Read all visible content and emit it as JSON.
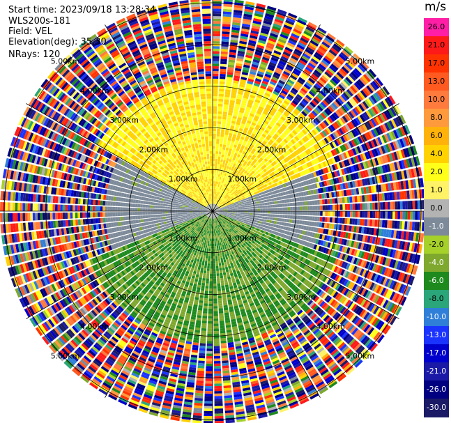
{
  "header": {
    "start_time": "Start time: 2023/09/18 13:28:34",
    "instrument": "WLS200s-181",
    "field": "Field: VEL",
    "elevation": "Elevation(deg): 35.30",
    "nrays": "NRays: 120"
  },
  "colorbar": {
    "unit": "m/s",
    "ticks": [
      "26.0",
      "21.0",
      "17.0",
      "13.0",
      "10.0",
      "8.0",
      "6.0",
      "4.0",
      "2.0",
      "1.0",
      "0.0",
      "-1.0",
      "-2.0",
      "-4.0",
      "-6.0",
      "-8.0",
      "-10.0",
      "-13.0",
      "-17.0",
      "-21.0",
      "-26.0",
      "-30.0"
    ],
    "colors": [
      "#ff1fa6",
      "#ff1a1a",
      "#ff3300",
      "#ff5a1f",
      "#ff7a3d",
      "#ff9a3c",
      "#ffb20a",
      "#ffd200",
      "#ffff1a",
      "#fff266",
      "#b3b3b3",
      "#7d8a99",
      "#a6d12a",
      "#7fa82e",
      "#1e8a1e",
      "#2aa67a",
      "#2f7fd9",
      "#1a33ff",
      "#0000cc",
      "#1a1aa6",
      "#000080",
      "#1a1a66"
    ]
  },
  "chart_data": {
    "type": "heatmap",
    "projection": "polar PPI",
    "field": "VEL",
    "nrays": 120,
    "range_rings_km": [
      1.0,
      2.0,
      3.0,
      4.0,
      5.0
    ],
    "ring_labels": [
      "1.00km",
      "2.00km",
      "3.00km",
      "4.00km",
      "5.00km"
    ],
    "max_range_km": 5.1,
    "spokes_deg": [
      0,
      30,
      60,
      90,
      120,
      150,
      180,
      210,
      240,
      270,
      300,
      330
    ],
    "regions": [
      {
        "sector": "north",
        "near_km": 0.2,
        "far_km": 3.2,
        "velocity_ms": [
          2.0,
          6.0
        ]
      },
      {
        "sector": "east-northeast",
        "near_km": 0.2,
        "far_km": 2.6,
        "velocity_ms": [
          -1.0,
          0.0
        ]
      },
      {
        "sector": "west",
        "near_km": 0.2,
        "far_km": 2.6,
        "velocity_ms": [
          -1.0,
          0.0
        ]
      },
      {
        "sector": "south",
        "near_km": 0.2,
        "far_km": 3.8,
        "velocity_ms": [
          -6.0,
          -2.0
        ]
      },
      {
        "sector": "all",
        "near_km": 3.2,
        "far_km": 5.1,
        "velocity_ms": [
          -30.0,
          26.0
        ],
        "note": "noise"
      }
    ]
  }
}
